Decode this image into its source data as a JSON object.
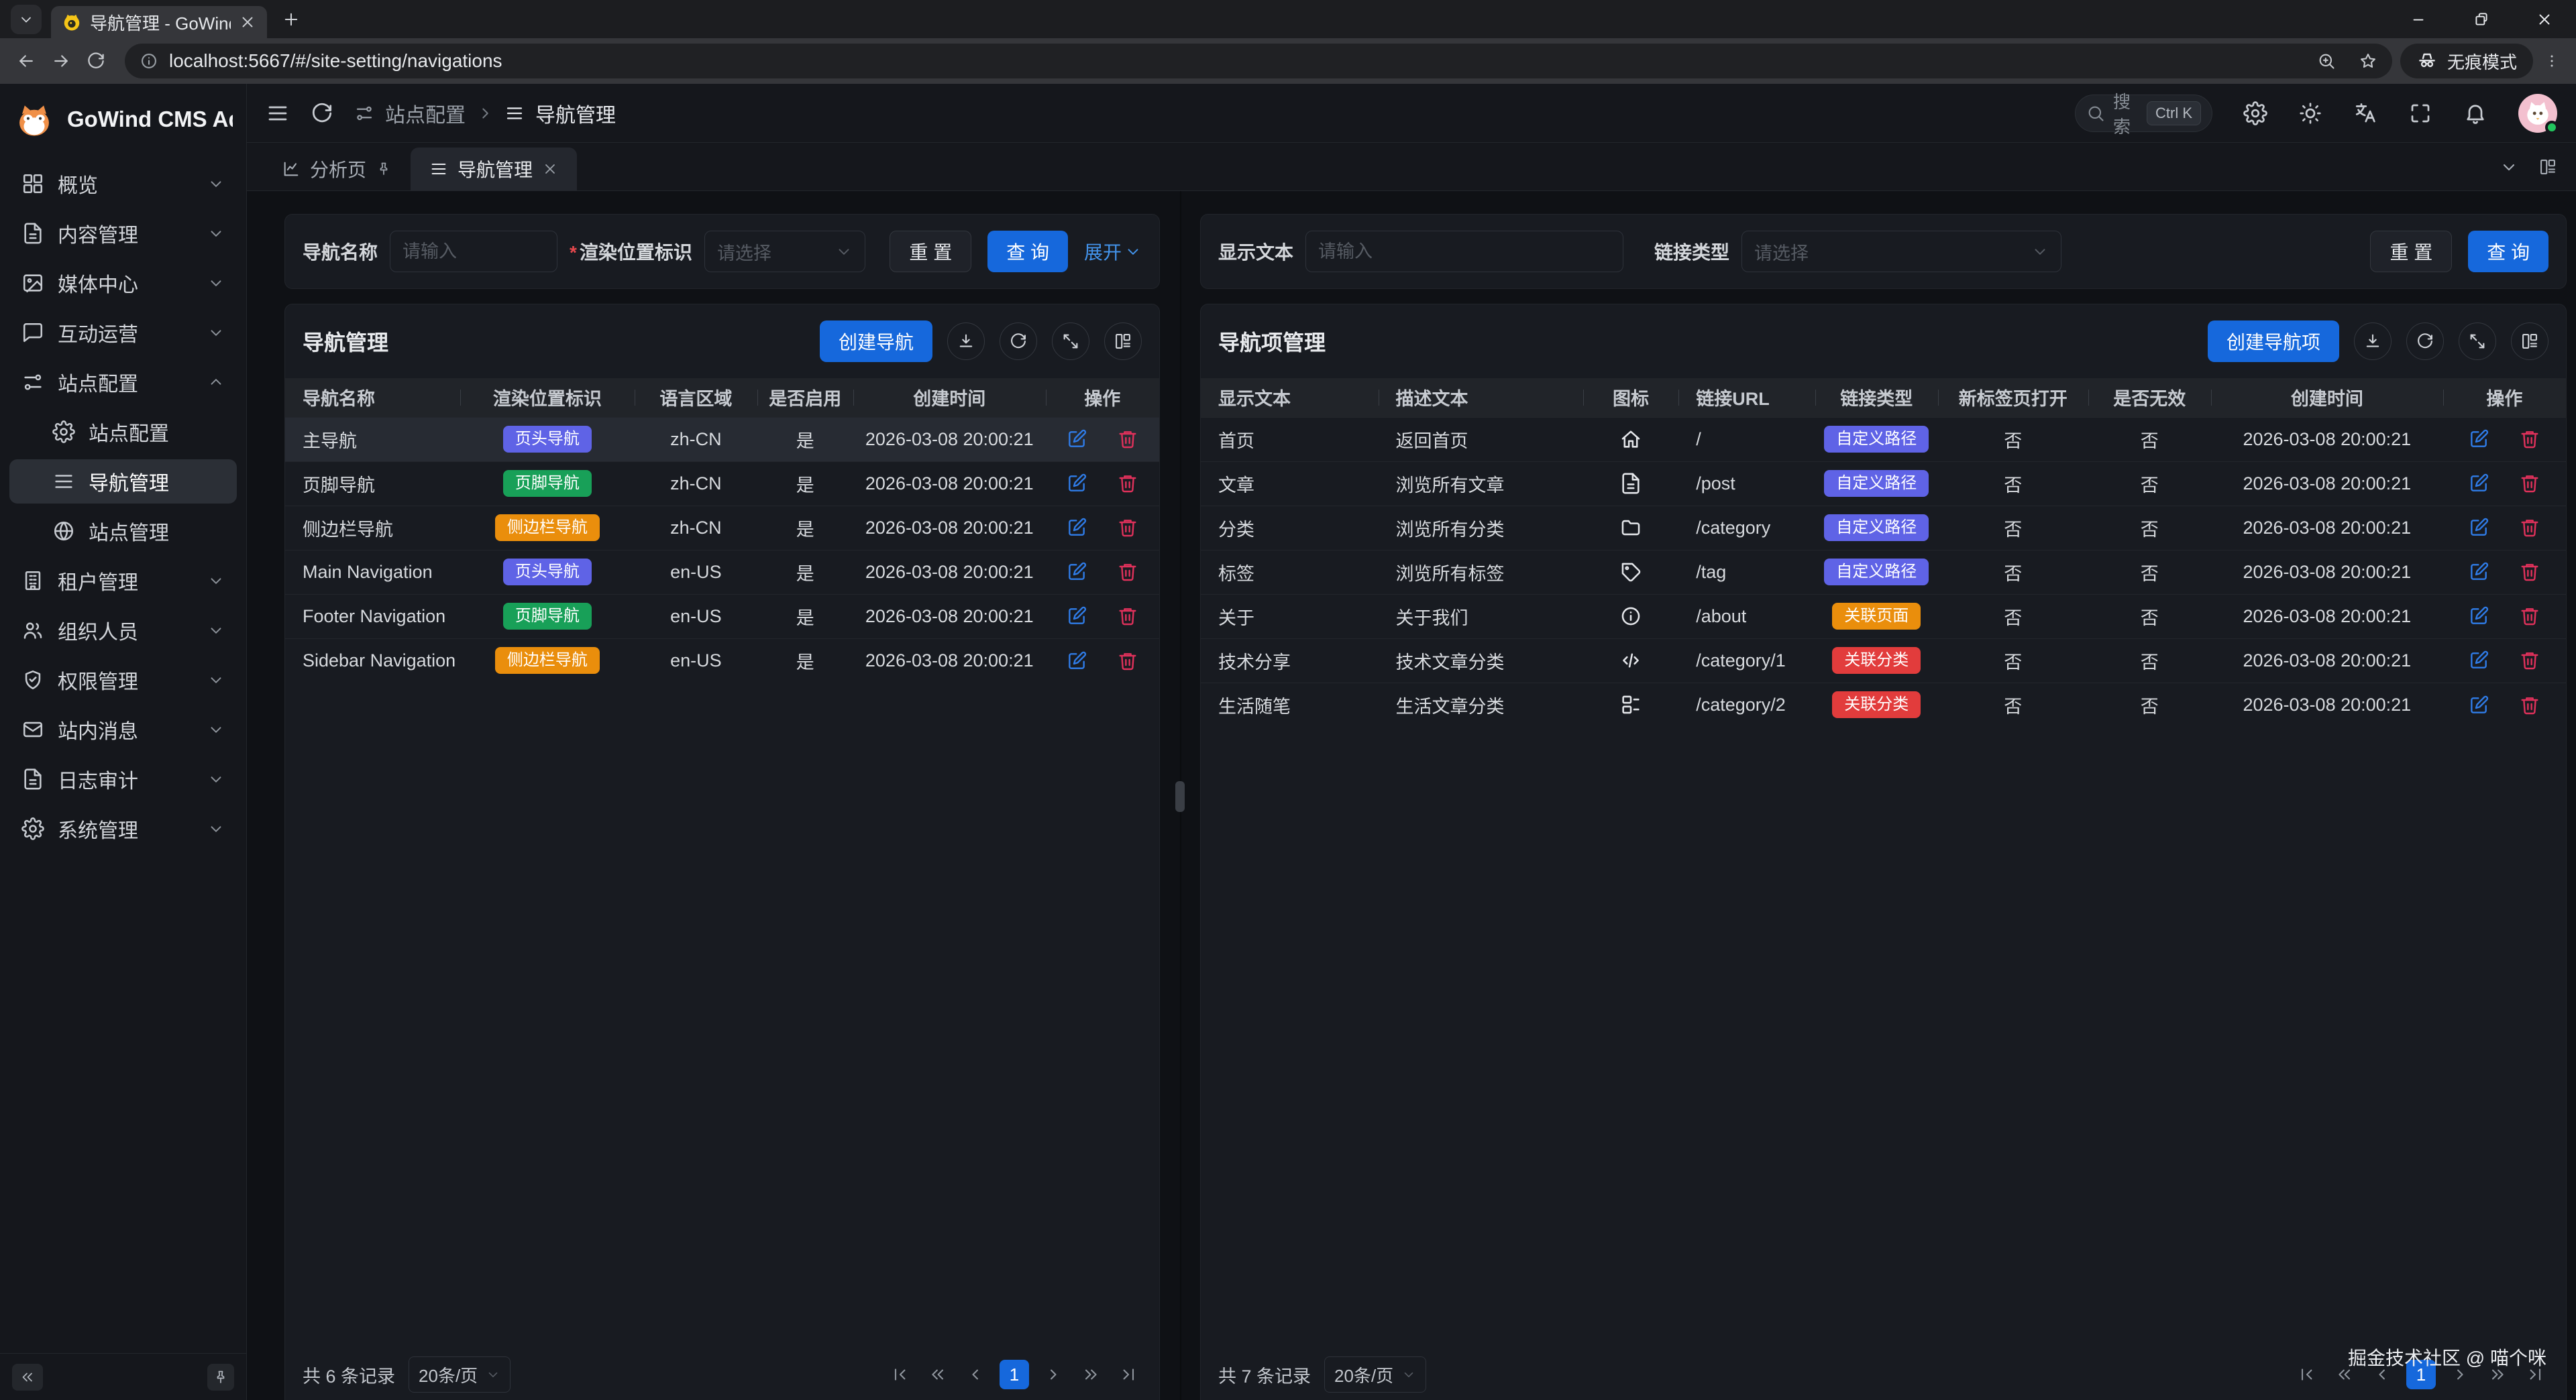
{
  "browser": {
    "tab_title": "导航管理 - GoWind CMS Adm",
    "url": "localhost:5667/#/site-setting/navigations",
    "incognito_label": "无痕模式"
  },
  "sidebar": {
    "brand": "GoWind CMS Ad...",
    "menu": [
      {
        "icon": "grid",
        "label": "概览",
        "chevron": "down"
      },
      {
        "icon": "file-text",
        "label": "内容管理",
        "chevron": "down"
      },
      {
        "icon": "image",
        "label": "媒体中心",
        "chevron": "down"
      },
      {
        "icon": "chat",
        "label": "互动运营",
        "chevron": "down"
      },
      {
        "icon": "sliders",
        "label": "站点配置",
        "chevron": "up",
        "children": [
          {
            "icon": "gear",
            "label": "站点配置",
            "active": false
          },
          {
            "icon": "menu",
            "label": "导航管理",
            "active": true
          },
          {
            "icon": "globe",
            "label": "站点管理",
            "active": false
          }
        ]
      },
      {
        "icon": "building",
        "label": "租户管理",
        "chevron": "down"
      },
      {
        "icon": "users",
        "label": "组织人员",
        "chevron": "down"
      },
      {
        "icon": "shield",
        "label": "权限管理",
        "chevron": "down"
      },
      {
        "icon": "mail",
        "label": "站内消息",
        "chevron": "down"
      },
      {
        "icon": "file-text",
        "label": "日志审计",
        "chevron": "down"
      },
      {
        "icon": "gear",
        "label": "系统管理",
        "chevron": "down"
      }
    ]
  },
  "header": {
    "breadcrumb_parent": "站点配置",
    "breadcrumb_current": "导航管理",
    "search_placeholder": "搜索",
    "search_kbd": "Ctrl K"
  },
  "tabbar": {
    "tab1": "分析页",
    "tab2": "导航管理"
  },
  "left_panel": {
    "filters": {
      "name_label": "导航名称",
      "name_placeholder": "请输入",
      "pos_label": "渲染位置标识",
      "pos_placeholder": "请选择",
      "reset": "重 置",
      "search": "查 询",
      "expand": "展开"
    },
    "title": "导航管理",
    "create_button": "创建导航",
    "columns": [
      "导航名称",
      "渲染位置标识",
      "语言区域",
      "是否启用",
      "创建时间",
      "操作"
    ],
    "rows": [
      {
        "name": "主导航",
        "badge": {
          "text": "页头导航",
          "color": "indigo"
        },
        "locale": "zh-CN",
        "enabled": "是",
        "created": "2026-03-08 20:00:21",
        "highlight": true
      },
      {
        "name": "页脚导航",
        "badge": {
          "text": "页脚导航",
          "color": "green"
        },
        "locale": "zh-CN",
        "enabled": "是",
        "created": "2026-03-08 20:00:21",
        "highlight": false
      },
      {
        "name": "侧边栏导航",
        "badge": {
          "text": "侧边栏导航",
          "color": "orange"
        },
        "locale": "zh-CN",
        "enabled": "是",
        "created": "2026-03-08 20:00:21",
        "highlight": false
      },
      {
        "name": "Main Navigation",
        "badge": {
          "text": "页头导航",
          "color": "indigo"
        },
        "locale": "en-US",
        "enabled": "是",
        "created": "2026-03-08 20:00:21",
        "highlight": false
      },
      {
        "name": "Footer Navigation",
        "badge": {
          "text": "页脚导航",
          "color": "green"
        },
        "locale": "en-US",
        "enabled": "是",
        "created": "2026-03-08 20:00:21",
        "highlight": false
      },
      {
        "name": "Sidebar Navigation",
        "badge": {
          "text": "侧边栏导航",
          "color": "orange"
        },
        "locale": "en-US",
        "enabled": "是",
        "created": "2026-03-08 20:00:21",
        "highlight": false
      }
    ],
    "pagination": {
      "total": "共 6 条记录",
      "page_size": "20条/页",
      "current": "1"
    }
  },
  "right_panel": {
    "filters": {
      "text_label": "显示文本",
      "text_placeholder": "请输入",
      "type_label": "链接类型",
      "type_placeholder": "请选择",
      "reset": "重 置",
      "search": "查 询"
    },
    "title": "导航项管理",
    "create_button": "创建导航项",
    "columns": [
      "显示文本",
      "描述文本",
      "图标",
      "链接URL",
      "链接类型",
      "新标签页打开",
      "是否无效",
      "创建时间",
      "操作"
    ],
    "rows": [
      {
        "text": "首页",
        "desc": "返回首页",
        "icon": "home",
        "url": "/",
        "type": {
          "text": "自定义路径",
          "color": "indigo"
        },
        "new_tab": "否",
        "invalid": "否",
        "created": "2026-03-08 20:00:21"
      },
      {
        "text": "文章",
        "desc": "浏览所有文章",
        "icon": "file-text",
        "url": "/post",
        "type": {
          "text": "自定义路径",
          "color": "indigo"
        },
        "new_tab": "否",
        "invalid": "否",
        "created": "2026-03-08 20:00:21"
      },
      {
        "text": "分类",
        "desc": "浏览所有分类",
        "icon": "folder",
        "url": "/category",
        "type": {
          "text": "自定义路径",
          "color": "indigo"
        },
        "new_tab": "否",
        "invalid": "否",
        "created": "2026-03-08 20:00:21"
      },
      {
        "text": "标签",
        "desc": "浏览所有标签",
        "icon": "tag",
        "url": "/tag",
        "type": {
          "text": "自定义路径",
          "color": "indigo"
        },
        "new_tab": "否",
        "invalid": "否",
        "created": "2026-03-08 20:00:21"
      },
      {
        "text": "关于",
        "desc": "关于我们",
        "icon": "info",
        "url": "/about",
        "type": {
          "text": "关联页面",
          "color": "orange"
        },
        "new_tab": "否",
        "invalid": "否",
        "created": "2026-03-08 20:00:21"
      },
      {
        "text": "技术分享",
        "desc": "技术文章分类",
        "icon": "code",
        "url": "/category/1",
        "type": {
          "text": "关联分类",
          "color": "red"
        },
        "new_tab": "否",
        "invalid": "否",
        "created": "2026-03-08 20:00:21"
      },
      {
        "text": "生活随笔",
        "desc": "生活文章分类",
        "icon": "layout-list",
        "url": "/category/2",
        "type": {
          "text": "关联分类",
          "color": "red"
        },
        "new_tab": "否",
        "invalid": "否",
        "created": "2026-03-08 20:00:21"
      }
    ],
    "pagination": {
      "total": "共 7 条记录",
      "page_size": "20条/页",
      "current": "1"
    }
  },
  "watermark": "掘金技术社区 @ 喵个咪",
  "colors": {
    "accent": "#1668dc",
    "indigo": "#5f63e6",
    "green": "#18a058",
    "orange": "#ea8e0c",
    "red": "#e23c3c"
  }
}
